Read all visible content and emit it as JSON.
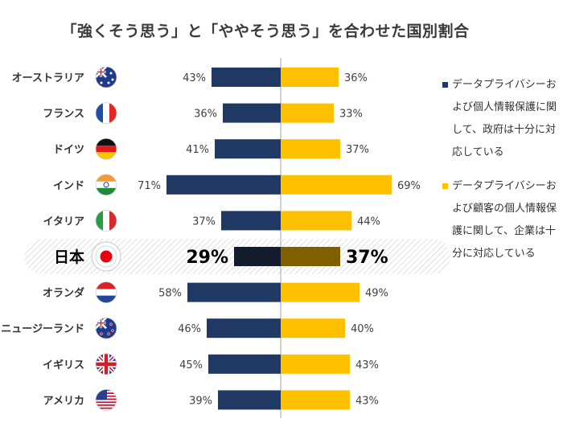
{
  "title": "「強くそう思う」と「ややそう思う」を合わせた国別割合",
  "colors": {
    "gov": "#1f3864",
    "corp": "#ffc000",
    "gov_highlight": "#121c2c",
    "corp_highlight": "#7f6000",
    "axis": "#a6a6a6"
  },
  "legend": [
    {
      "label": "データプライバシーおよび個人情報保護に関して、政府は十分に対応している",
      "color": "#1f3864"
    },
    {
      "label": "データプライバシーおよび顧客の個人情報保護に関して、企業は十分に対応している",
      "color": "#ffc000"
    }
  ],
  "chart_data": {
    "type": "bar",
    "orientation": "diverging-horizontal",
    "title": "「強くそう思う」と「ややそう思う」を合わせた国別割合",
    "categories": [
      "オーストラリア",
      "フランス",
      "ドイツ",
      "インド",
      "イタリア",
      "日本",
      "オランダ",
      "ニュージーランド",
      "イギリス",
      "アメリカ"
    ],
    "flags": [
      "australia-flag",
      "france-flag",
      "germany-flag",
      "india-flag",
      "italy-flag",
      "japan-flag",
      "netherlands-flag",
      "new-zealand-flag",
      "uk-flag",
      "usa-flag"
    ],
    "highlight": "日本",
    "unit": "%",
    "xlim": [
      0,
      100
    ],
    "series": [
      {
        "name": "データプライバシーおよび個人情報保護に関して、政府は十分に対応している",
        "side": "left",
        "values": [
          43,
          36,
          41,
          71,
          37,
          29,
          58,
          46,
          45,
          39
        ]
      },
      {
        "name": "データプライバシーおよび顧客の個人情報保護に関して、企業は十分に対応している",
        "side": "right",
        "values": [
          36,
          33,
          37,
          69,
          44,
          37,
          49,
          40,
          43,
          43
        ]
      }
    ]
  }
}
